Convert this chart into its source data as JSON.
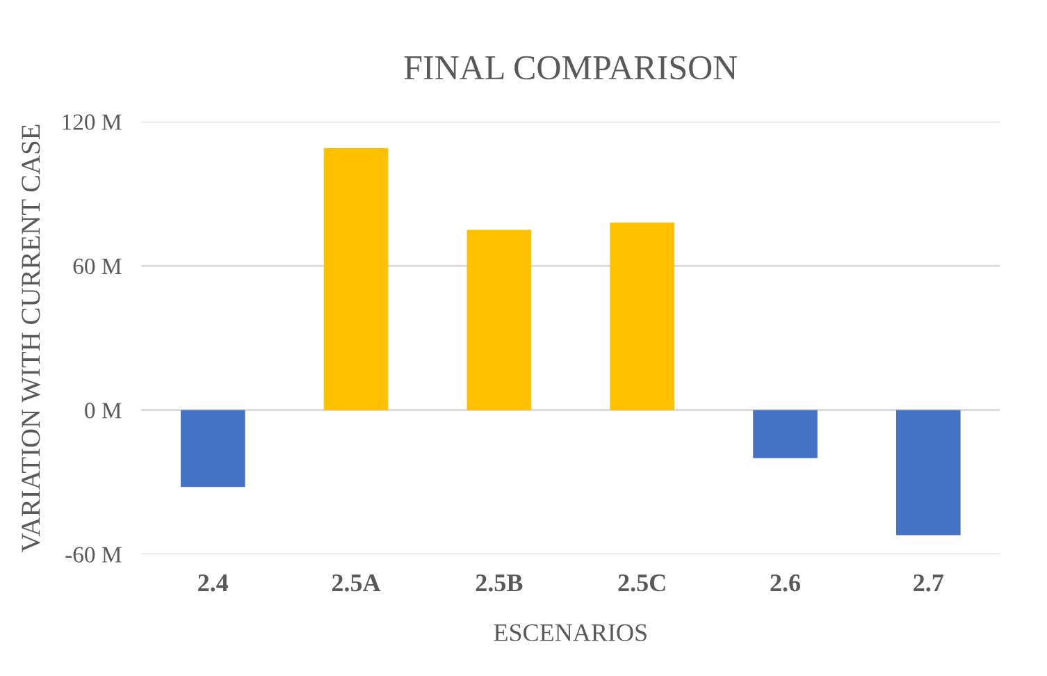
{
  "chart_data": {
    "type": "bar",
    "title": "FINAL COMPARISON",
    "xlabel": "ESCENARIOS",
    "ylabel": "VARIATION WITH CURRENT CASE",
    "categories": [
      "2.4",
      "2.5A",
      "2.5B",
      "2.5C",
      "2.6",
      "2.7"
    ],
    "values": [
      -32,
      109,
      75,
      78,
      -20,
      -52
    ],
    "colors": [
      "#4472c4",
      "#ffc000",
      "#ffc000",
      "#ffc000",
      "#4472c4",
      "#4472c4"
    ],
    "ylim": [
      -60,
      120
    ],
    "yticks": [
      {
        "value": -60,
        "label": "-60 M"
      },
      {
        "value": 0,
        "label": "0 M"
      },
      {
        "value": 60,
        "label": "60 M"
      },
      {
        "value": 120,
        "label": "120 M"
      }
    ],
    "grid": "y"
  }
}
